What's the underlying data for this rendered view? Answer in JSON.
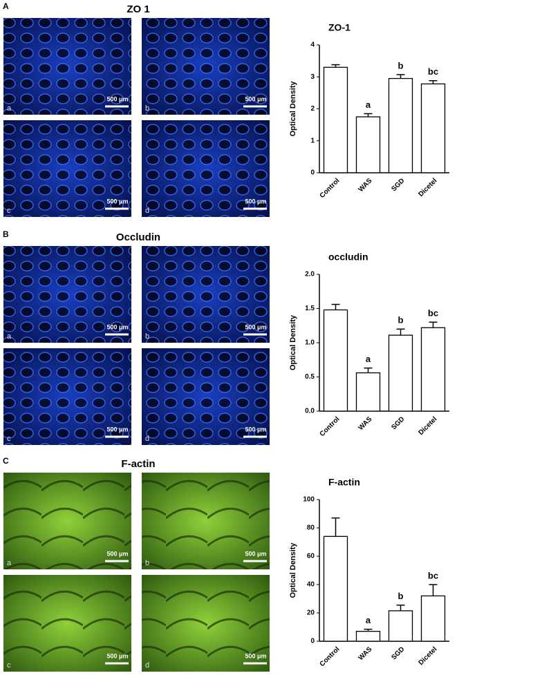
{
  "panels": [
    {
      "label": "A",
      "heading": "ZO 1",
      "images": [
        {
          "label": "a",
          "scale": "500 μm"
        },
        {
          "label": "b",
          "scale": "500 μm"
        },
        {
          "label": "c",
          "scale": "500 μm"
        },
        {
          "label": "d",
          "scale": "500 μm"
        }
      ]
    },
    {
      "label": "B",
      "heading": "Occludin",
      "images": [
        {
          "label": "a",
          "scale": "500 μm"
        },
        {
          "label": "b",
          "scale": "500 μm"
        },
        {
          "label": "c",
          "scale": "500 μm"
        },
        {
          "label": "d",
          "scale": "500 μm"
        }
      ]
    },
    {
      "label": "C",
      "heading": "F-actin",
      "images": [
        {
          "label": "a",
          "scale": "500 μm"
        },
        {
          "label": "b",
          "scale": "500 μm"
        },
        {
          "label": "c",
          "scale": "500 μm"
        },
        {
          "label": "d",
          "scale": "500 μm"
        }
      ]
    }
  ],
  "chart_data": [
    {
      "type": "bar",
      "title": "ZO-1",
      "y_label": "Optical Density",
      "categories": [
        "Control",
        "WAS",
        "SGD",
        "Dicetel"
      ],
      "values": [
        3.3,
        1.75,
        2.95,
        2.78
      ],
      "errors": [
        0.08,
        0.1,
        0.12,
        0.1
      ],
      "color": "#ffffff",
      "annotations": [
        {
          "category": "WAS",
          "text": "a"
        },
        {
          "category": "SGD",
          "text": "b"
        },
        {
          "category": "Dicetel",
          "text": "bc"
        }
      ],
      "ylim": [
        0,
        4
      ],
      "yticks": [
        0,
        1,
        2,
        3,
        4
      ]
    },
    {
      "type": "bar",
      "title": "occludin",
      "y_label": "Optical Density",
      "categories": [
        "Control",
        "WAS",
        "SGD",
        "Dicetel"
      ],
      "values": [
        1.48,
        0.56,
        1.11,
        1.22
      ],
      "errors": [
        0.08,
        0.07,
        0.09,
        0.08
      ],
      "color": "#ffffff",
      "annotations": [
        {
          "category": "WAS",
          "text": "a"
        },
        {
          "category": "SGD",
          "text": "b"
        },
        {
          "category": "Dicetel",
          "text": "bc"
        }
      ],
      "ylim": [
        0,
        2
      ],
      "yticks": [
        {
          "value": 0,
          "label": "0.0"
        },
        {
          "value": 0.5,
          "label": "0.5"
        },
        {
          "value": 1,
          "label": "1.0"
        },
        {
          "value": 1.5,
          "label": "1.5"
        },
        {
          "value": 2,
          "label": "2.0"
        }
      ]
    },
    {
      "type": "bar",
      "title": "F-actin",
      "y_label": "Optical Density",
      "categories": [
        "Control",
        "WAS",
        "SGD",
        "Dicetel"
      ],
      "values": [
        74,
        7,
        21.5,
        32
      ],
      "errors": [
        13,
        1.5,
        4,
        8
      ],
      "color": "#ffffff",
      "annotations": [
        {
          "category": "WAS",
          "text": "a"
        },
        {
          "category": "SGD",
          "text": "b"
        },
        {
          "category": "Dicetel",
          "text": "bc"
        }
      ],
      "ylim": [
        0,
        100
      ],
      "yticks": [
        0,
        20,
        40,
        60,
        80,
        100
      ]
    }
  ]
}
